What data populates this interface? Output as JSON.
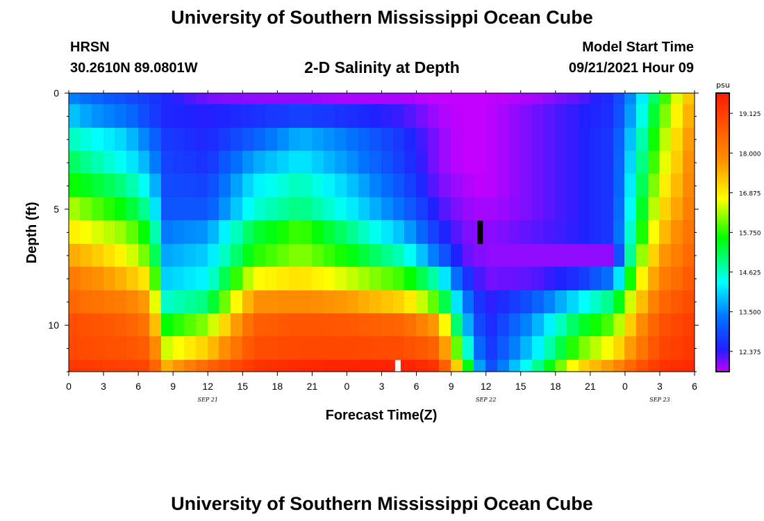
{
  "header": {
    "title": "University of Southern Mississippi Ocean Cube",
    "station": "HRSN",
    "coords": "30.2610N  89.0801W",
    "plot_title": "2-D Salinity at Depth",
    "start_label": "Model Start Time",
    "start_time": "09/21/2021 Hour 09"
  },
  "footer": {
    "title": "University of Southern Mississippi Ocean Cube"
  },
  "chart_data": {
    "type": "heatmap",
    "title": "2-D Salinity at Depth",
    "xlabel": "Forecast Time(Z)",
    "ylabel": "Depth (ft)",
    "x_ticks": [
      "0",
      "3",
      "6",
      "9",
      "12",
      "15",
      "18",
      "21",
      "0",
      "3",
      "6",
      "9",
      "12",
      "15",
      "18",
      "21",
      "0",
      "3",
      "6"
    ],
    "date_labels": [
      {
        "label": "SEP 21",
        "hour": 12
      },
      {
        "label": "SEP 22",
        "hour": 36
      },
      {
        "label": "SEP 23",
        "hour": 51
      }
    ],
    "x_range_hours": [
      0,
      54
    ],
    "y_ticks": [
      "0",
      "5",
      "10"
    ],
    "y_tick_values": [
      0,
      5,
      10
    ],
    "y_range_ft": [
      0,
      12
    ],
    "depth_levels": 12,
    "colorbar": {
      "unit": "psu",
      "min": 11.8,
      "max": 19.7,
      "labels": [
        "19.125",
        "18.000",
        "16.875",
        "15.750",
        "14.625",
        "13.500",
        "12.375"
      ],
      "label_values": [
        19.125,
        18.0,
        16.875,
        15.75,
        14.625,
        13.5,
        12.375
      ]
    },
    "salinity_keyframes": {
      "hours": [
        0,
        2,
        5,
        7,
        8.5,
        12,
        16,
        20,
        24,
        29,
        32,
        34,
        36,
        40,
        44,
        47,
        49,
        51,
        54
      ],
      "rows": [
        [
          13.5,
          13.2,
          12.9,
          12.7,
          12.5,
          12.1,
          12.0,
          12.0,
          11.9,
          11.9,
          11.8,
          11.8,
          11.8,
          11.9,
          12.2,
          12.6,
          13.8,
          15.5,
          17.6
        ],
        [
          14.0,
          13.6,
          13.3,
          12.8,
          12.5,
          12.4,
          12.6,
          12.8,
          12.6,
          12.3,
          11.9,
          11.8,
          11.8,
          12.1,
          12.4,
          12.6,
          14.0,
          15.8,
          17.8
        ],
        [
          14.7,
          14.4,
          14.0,
          13.3,
          12.7,
          12.5,
          13.1,
          13.8,
          13.4,
          12.6,
          12.0,
          11.8,
          11.8,
          12.1,
          12.4,
          12.7,
          14.3,
          16.1,
          18.0
        ],
        [
          15.2,
          14.8,
          14.3,
          13.7,
          12.8,
          12.6,
          13.7,
          14.2,
          13.6,
          12.7,
          12.0,
          11.8,
          11.8,
          12.1,
          12.4,
          12.7,
          14.5,
          16.3,
          18.1
        ],
        [
          15.7,
          15.4,
          14.9,
          14.2,
          12.9,
          12.8,
          14.2,
          14.7,
          14.0,
          12.9,
          12.1,
          11.9,
          11.8,
          12.1,
          12.4,
          12.7,
          14.7,
          16.6,
          18.2
        ],
        [
          16.4,
          16.0,
          15.5,
          14.7,
          13.0,
          13.0,
          14.5,
          15.0,
          14.3,
          13.2,
          12.3,
          12.0,
          11.9,
          12.1,
          12.4,
          12.7,
          14.9,
          16.9,
          18.3
        ],
        [
          16.9,
          16.6,
          16.2,
          15.4,
          13.4,
          13.6,
          15.3,
          15.9,
          15.0,
          13.8,
          12.6,
          12.1,
          12.0,
          12.2,
          12.4,
          12.7,
          15.2,
          17.2,
          18.5
        ],
        [
          17.6,
          17.3,
          16.7,
          15.9,
          13.7,
          14.0,
          15.7,
          16.2,
          15.6,
          14.6,
          13.2,
          12.2,
          12.0,
          12.0,
          12.0,
          12.0,
          15.8,
          17.6,
          18.6
        ],
        [
          18.2,
          17.9,
          17.4,
          16.8,
          14.0,
          14.3,
          16.7,
          17.0,
          16.5,
          15.8,
          14.6,
          12.8,
          12.1,
          12.2,
          12.6,
          13.4,
          16.4,
          18.0,
          18.8
        ],
        [
          18.5,
          18.3,
          18.1,
          17.6,
          14.6,
          15.0,
          17.8,
          17.9,
          17.7,
          17.1,
          15.8,
          13.6,
          12.3,
          13.0,
          14.2,
          15.0,
          17.0,
          18.4,
          19.0
        ],
        [
          18.9,
          18.8,
          18.6,
          18.2,
          15.6,
          16.2,
          18.6,
          18.8,
          18.7,
          18.5,
          17.6,
          14.2,
          12.4,
          13.6,
          15.3,
          16.0,
          17.6,
          18.8,
          19.2
        ],
        [
          19.0,
          18.9,
          18.8,
          18.6,
          16.5,
          17.2,
          18.9,
          19.0,
          19.0,
          18.9,
          18.5,
          15.2,
          12.5,
          14.0,
          16.0,
          16.8,
          18.0,
          19.0,
          19.3
        ],
        [
          19.3,
          19.2,
          19.1,
          19.0,
          17.5,
          18.5,
          19.3,
          19.5,
          19.6,
          19.6,
          19.3,
          16.5,
          12.7,
          14.6,
          17.0,
          17.8,
          18.7,
          19.3,
          19.5
        ]
      ]
    },
    "markers": [
      {
        "name": "black-marker",
        "color": "#000000",
        "hour": 35.5,
        "depth_range_ft": [
          5.5,
          6.5
        ]
      },
      {
        "name": "white-marker",
        "color": "#ffffff",
        "hour": 28.4,
        "depth_range_ft": [
          11.5,
          12
        ]
      }
    ]
  }
}
